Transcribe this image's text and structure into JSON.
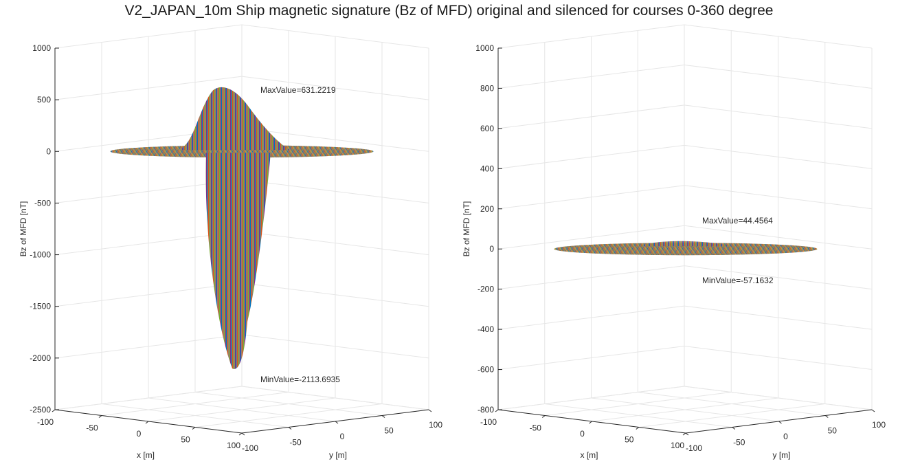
{
  "title": "V2_JAPAN_10m Ship magnetic signature (Bz of MFD) original and silenced for courses 0-360 degree",
  "chart_data": [
    {
      "type": "surface3d",
      "name": "original",
      "xlabel": "x [m]",
      "ylabel": "y [m]",
      "zlabel": "Bz of MFD [nT]",
      "xlim": [
        -100,
        100
      ],
      "ylim": [
        -100,
        100
      ],
      "zlim": [
        -2500,
        1000
      ],
      "xticks": [
        "-100",
        "-50",
        "0",
        "50",
        "100"
      ],
      "yticks": [
        "-100",
        "-50",
        "0",
        "50",
        "100"
      ],
      "zticks": [
        1000,
        500,
        0,
        -500,
        -1000,
        -1500,
        -2000,
        -2500
      ],
      "max_value": 631.2219,
      "min_value": -2113.6935,
      "max_label": "MaxValue=631.2219",
      "min_label": "MinValue=-2113.6935",
      "grid": true
    },
    {
      "type": "surface3d",
      "name": "silenced",
      "xlabel": "x [m]",
      "ylabel": "y [m]",
      "zlabel": "Bz of MFD [nT]",
      "xlim": [
        -100,
        100
      ],
      "ylim": [
        -100,
        100
      ],
      "zlim": [
        -800,
        1000
      ],
      "xticks": [
        "-100",
        "-50",
        "0",
        "50",
        "100"
      ],
      "yticks": [
        "-100",
        "-50",
        "0",
        "50",
        "100"
      ],
      "zticks": [
        1000,
        800,
        600,
        400,
        200,
        0,
        -200,
        -400,
        -600,
        -800
      ],
      "max_value": 44.4564,
      "min_value": -57.1632,
      "max_label": "MaxValue=44.4564",
      "min_label": "MinValue=-57.1632",
      "grid": true
    }
  ],
  "colors": {
    "surface_base": "#9a8068",
    "stripe_colors": [
      "#0072bd",
      "#d95319",
      "#edb120",
      "#7e2f8e",
      "#77ac30",
      "#4dbeee",
      "#a2142f"
    ],
    "grid": "#e6e6e6",
    "axis": "#262626"
  }
}
